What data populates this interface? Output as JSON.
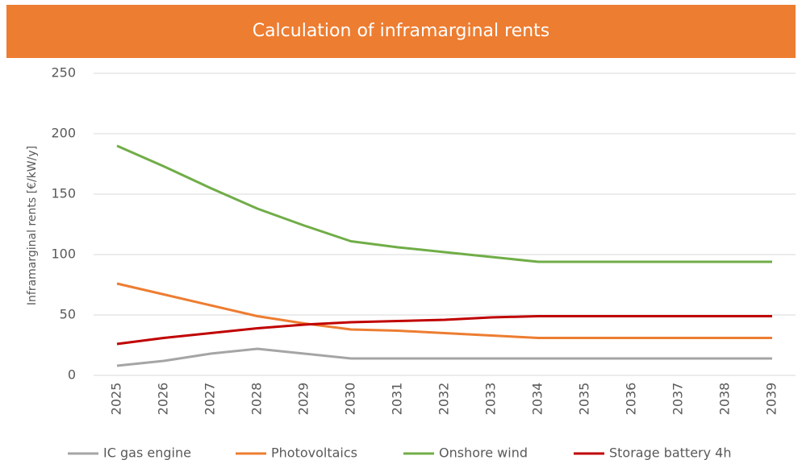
{
  "chart_data": {
    "type": "line",
    "title": "Calculation of inframarginal rents",
    "y_label": "Inframarginal rents [€/kW/y]",
    "categories": [
      "2025",
      "2026",
      "2027",
      "2028",
      "2029",
      "2030",
      "2031",
      "2032",
      "2033",
      "2034",
      "2035",
      "2036",
      "2037",
      "2038",
      "2039"
    ],
    "series": [
      {
        "name": "IC gas engine",
        "color": "#a5a5a5",
        "values": [
          8,
          12,
          18,
          22,
          18,
          14,
          14,
          14,
          14,
          14,
          14,
          14,
          14,
          14,
          14
        ]
      },
      {
        "name": "Photovoltaics",
        "color": "#ed7d31",
        "values": [
          76,
          67,
          58,
          49,
          43,
          38,
          37,
          35,
          33,
          31,
          31,
          31,
          31,
          31,
          31
        ]
      },
      {
        "name": "Onshore wind",
        "color": "#70ad47",
        "values": [
          190,
          173,
          155,
          138,
          124,
          111,
          106,
          102,
          98,
          94,
          94,
          94,
          94,
          94,
          94
        ]
      },
      {
        "name": "Storage battery 4h",
        "color": "#c00000",
        "values": [
          26,
          31,
          35,
          39,
          42,
          44,
          45,
          46,
          48,
          49,
          49,
          49,
          49,
          49,
          49
        ]
      }
    ],
    "ylim": [
      0,
      250
    ],
    "yticks": [
      0,
      50,
      100,
      150,
      200,
      250
    ],
    "grid": true,
    "legend": "bottom"
  }
}
